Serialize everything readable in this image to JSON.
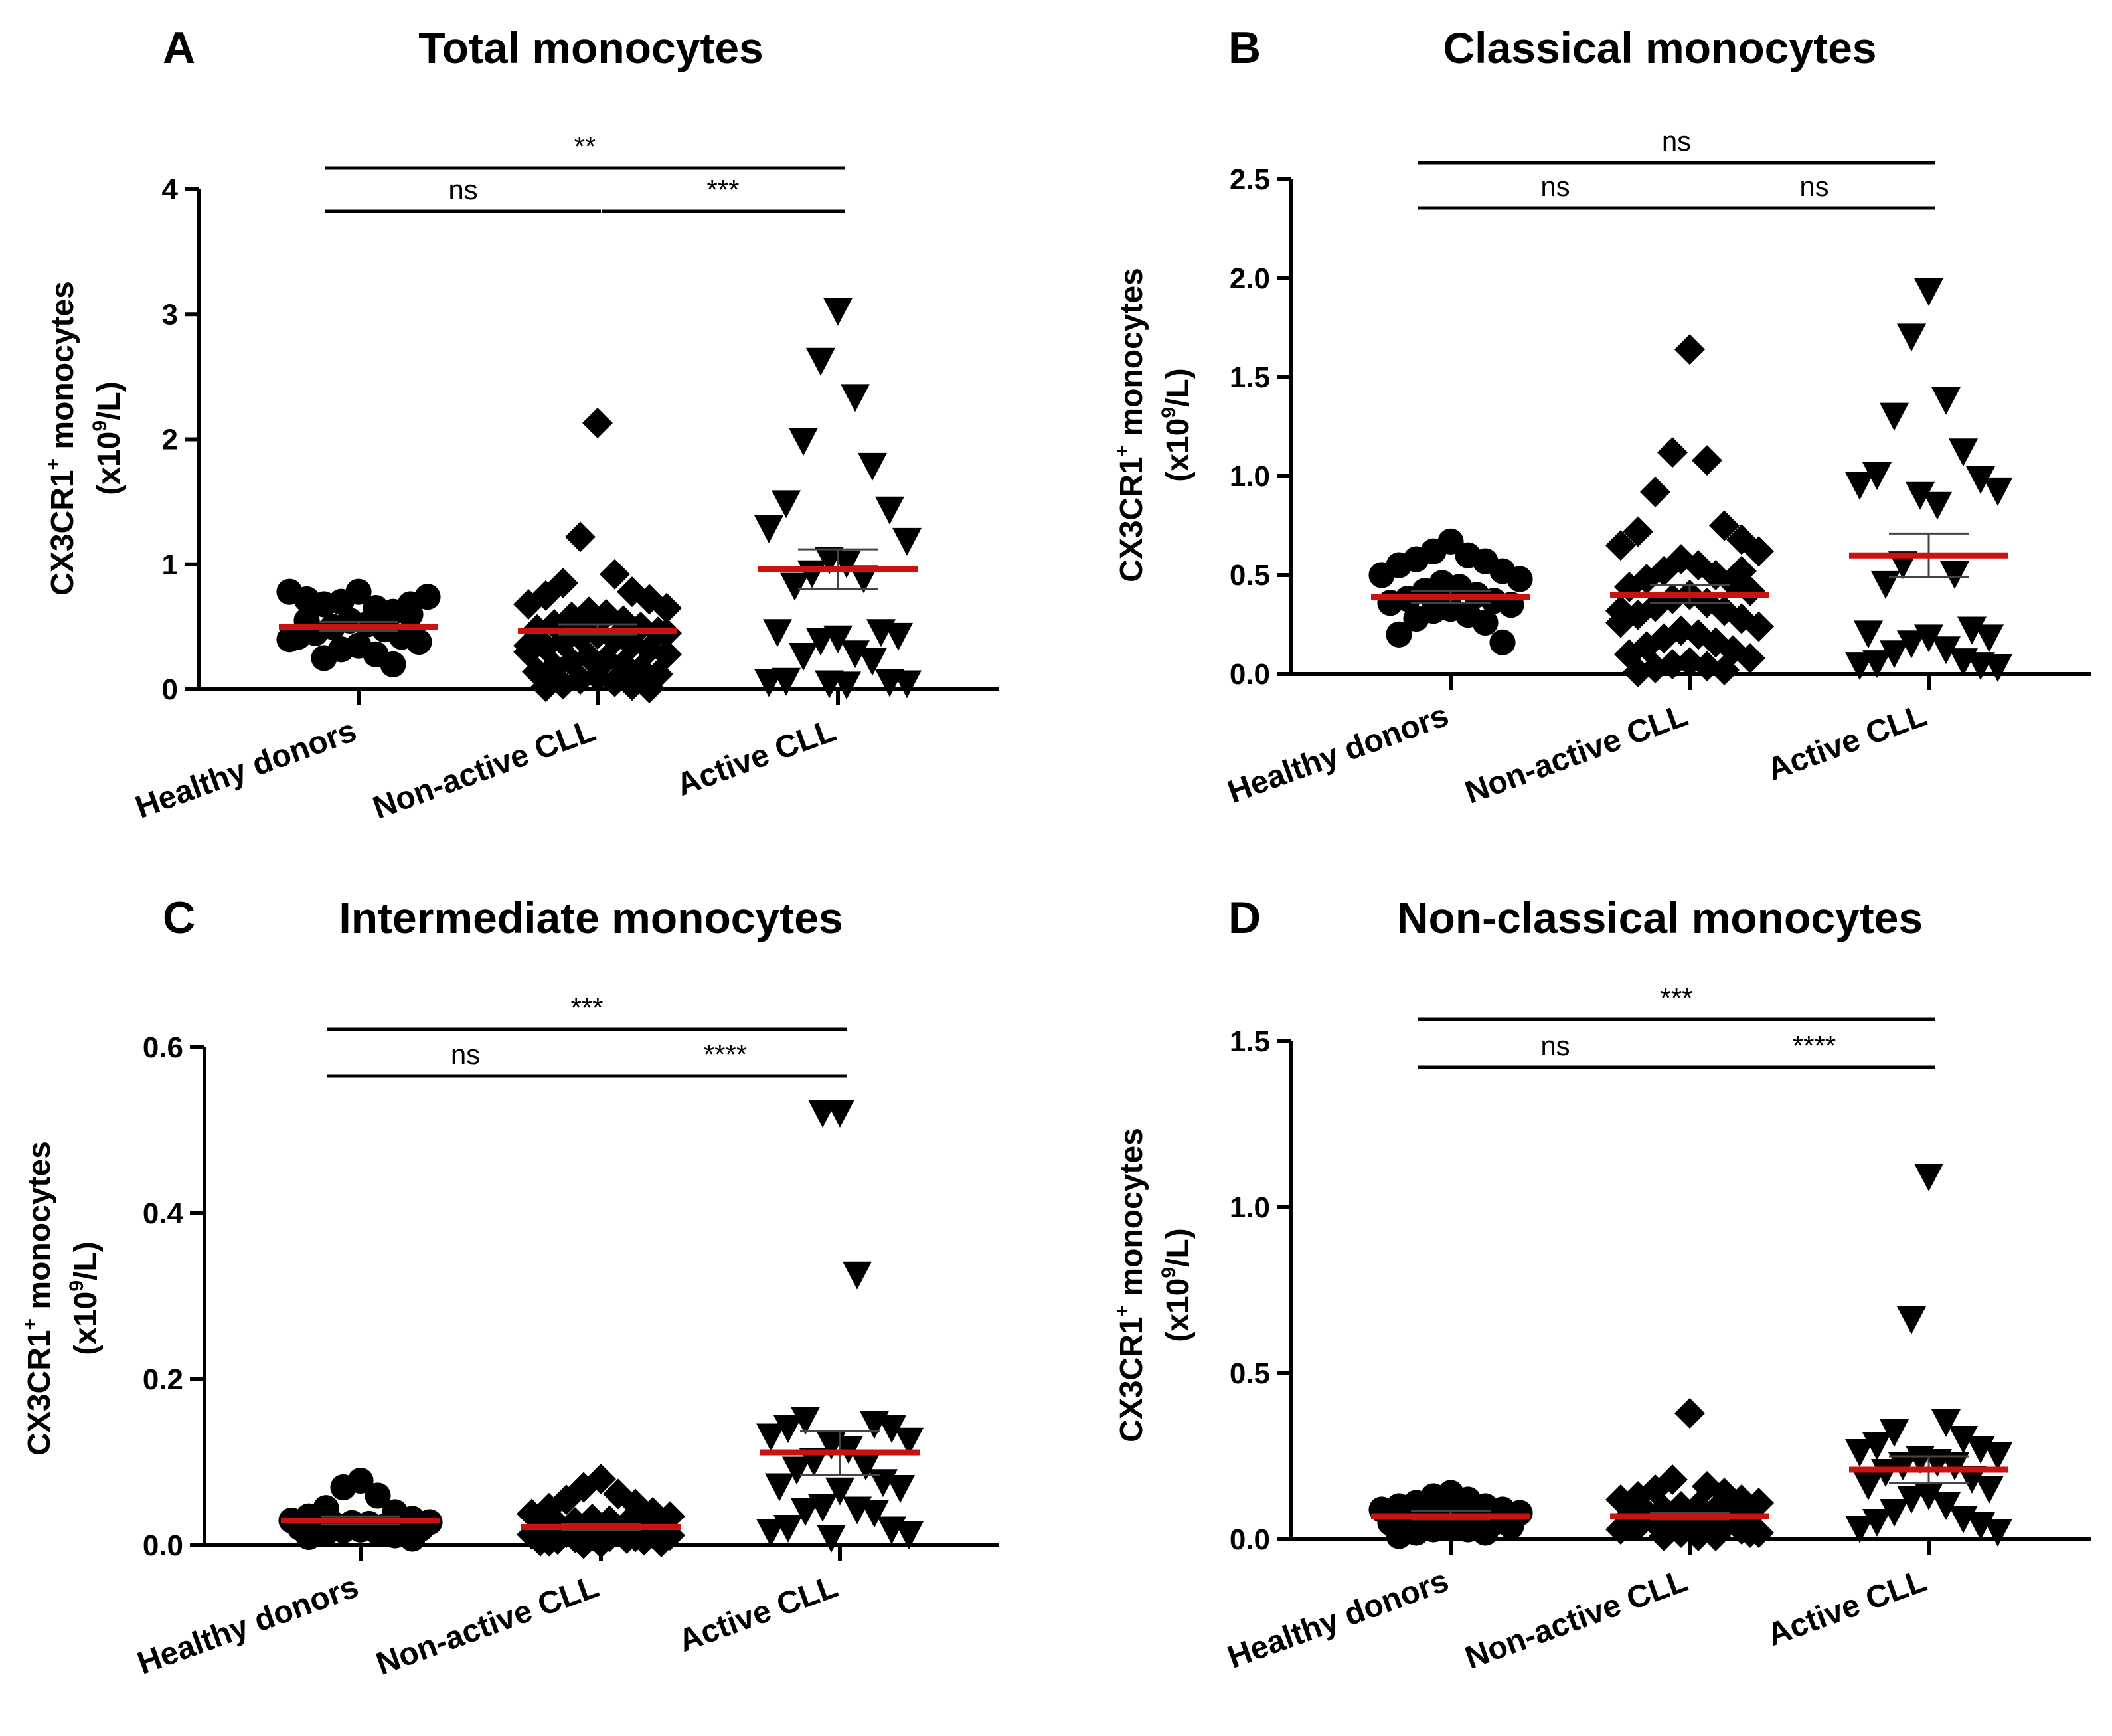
{
  "colors": {
    "points": "#000000",
    "median": "#cc1111",
    "axis": "#000000"
  },
  "chart_data": [
    {
      "letter": "A",
      "title": "Total monocytes",
      "type": "scatter",
      "categories": [
        "Healthy donors",
        "Non-active CLL",
        "Active CLL"
      ],
      "ylabel": {
        "line1": "CX3CR1",
        "sup1": "+",
        "line1b": " monocytes",
        "line2a": "(x10",
        "sup2": "9",
        "line2b": "/L)"
      },
      "ylim": [
        0,
        4
      ],
      "yticks": [
        "0",
        "1",
        "2",
        "3",
        "4"
      ],
      "yticks_values": [
        0,
        1,
        2,
        3,
        4
      ],
      "markers": [
        "circle",
        "diamond",
        "triangle-down"
      ],
      "medians": [
        0.5,
        0.47,
        0.96
      ],
      "errors": [
        [
          0.47,
          0.54
        ],
        [
          0.44,
          0.52
        ],
        [
          0.8,
          1.12
        ]
      ],
      "significance": [
        {
          "from": 0,
          "to": 2,
          "label": "**",
          "level": 2
        },
        {
          "from": 0,
          "to": 1,
          "label": "ns",
          "level": 1
        },
        {
          "from": 1,
          "to": 2,
          "label": "***",
          "level": 1
        }
      ],
      "series": [
        {
          "name": "Healthy donors",
          "values": [
            0.78,
            0.7,
            0.65,
            0.68,
            0.62,
            0.72,
            0.68,
            0.78,
            0.74,
            0.55,
            0.52,
            0.5,
            0.48,
            0.45,
            0.42,
            0.42,
            0.38,
            0.35,
            0.32,
            0.28,
            0.25,
            0.2,
            0.55,
            0.6,
            0.4
          ]
        },
        {
          "name": "Non-active CLL",
          "values": [
            2.13,
            1.22,
            0.92,
            0.85,
            0.78,
            0.75,
            0.72,
            0.68,
            0.65,
            0.62,
            0.6,
            0.58,
            0.55,
            0.52,
            0.5,
            0.48,
            0.46,
            0.44,
            0.42,
            0.4,
            0.38,
            0.36,
            0.34,
            0.32,
            0.3,
            0.28,
            0.26,
            0.24,
            0.22,
            0.2,
            0.18,
            0.16,
            0.14,
            0.12,
            0.1,
            0.08,
            0.06,
            0.04,
            0.03,
            0.02,
            0.01,
            0.35,
            0.45,
            0.55
          ]
        },
        {
          "name": "Active CLL",
          "values": [
            3.02,
            2.62,
            2.33,
            1.98,
            1.78,
            1.48,
            1.43,
            1.28,
            1.18,
            1.03,
            1.0,
            0.92,
            0.88,
            0.82,
            0.45,
            0.45,
            0.42,
            0.4,
            0.38,
            0.28,
            0.26,
            0.22,
            0.06,
            0.05,
            0.05,
            0.04,
            0.04,
            0.03
          ]
        }
      ]
    },
    {
      "letter": "B",
      "title": "Classical monocytes",
      "type": "scatter",
      "categories": [
        "Healthy donors",
        "Non-active CLL",
        "Active CLL"
      ],
      "ylabel": {
        "line1": "CX3CR1",
        "sup1": "+",
        "line1b": " monocytes",
        "line2a": "(x10",
        "sup2": "9",
        "line2b": "/L)"
      },
      "ylim": [
        0,
        2.5
      ],
      "yticks": [
        "0.0",
        "0.5",
        "1.0",
        "1.5",
        "2.0",
        "2.5"
      ],
      "yticks_values": [
        0,
        0.5,
        1.0,
        1.5,
        2.0,
        2.5
      ],
      "markers": [
        "circle",
        "diamond",
        "triangle-down"
      ],
      "medians": [
        0.39,
        0.4,
        0.6
      ],
      "errors": [
        [
          0.36,
          0.42
        ],
        [
          0.36,
          0.45
        ],
        [
          0.49,
          0.71
        ]
      ],
      "significance": [
        {
          "from": 0,
          "to": 2,
          "label": "ns",
          "level": 2
        },
        {
          "from": 0,
          "to": 1,
          "label": "ns",
          "level": 1
        },
        {
          "from": 1,
          "to": 2,
          "label": "ns",
          "level": 1
        }
      ],
      "series": [
        {
          "name": "Healthy donors",
          "values": [
            0.67,
            0.62,
            0.6,
            0.58,
            0.57,
            0.55,
            0.52,
            0.5,
            0.48,
            0.46,
            0.44,
            0.42,
            0.4,
            0.38,
            0.37,
            0.36,
            0.35,
            0.33,
            0.32,
            0.3,
            0.28,
            0.26,
            0.2,
            0.16
          ]
        },
        {
          "name": "Non-active CLL",
          "values": [
            1.64,
            1.12,
            1.08,
            0.92,
            0.75,
            0.72,
            0.68,
            0.65,
            0.62,
            0.58,
            0.55,
            0.52,
            0.5,
            0.48,
            0.46,
            0.44,
            0.42,
            0.4,
            0.38,
            0.36,
            0.34,
            0.32,
            0.3,
            0.28,
            0.26,
            0.24,
            0.22,
            0.2,
            0.18,
            0.16,
            0.14,
            0.12,
            0.1,
            0.08,
            0.06,
            0.05,
            0.04,
            0.03,
            0.02,
            0.01,
            0.52,
            0.32
          ]
        },
        {
          "name": "Active CLL",
          "values": [
            1.93,
            1.7,
            1.38,
            1.3,
            1.12,
            1.0,
            0.98,
            0.95,
            0.92,
            0.9,
            0.85,
            0.55,
            0.5,
            0.45,
            0.22,
            0.2,
            0.18,
            0.18,
            0.15,
            0.12,
            0.1,
            0.06,
            0.05,
            0.04,
            0.04,
            0.03
          ]
        }
      ]
    },
    {
      "letter": "C",
      "title": "Intermediate monocytes",
      "type": "scatter",
      "categories": [
        "Healthy donors",
        "Non-active CLL",
        "Active CLL"
      ],
      "ylabel": {
        "line1": "CX3CR1",
        "sup1": "+",
        "line1b": " monocytes",
        "line2a": "(x10",
        "sup2": "9",
        "line2b": "/L)"
      },
      "ylim": [
        0,
        0.6
      ],
      "yticks": [
        "0.0",
        "0.2",
        "0.4",
        "0.6"
      ],
      "yticks_values": [
        0,
        0.2,
        0.4,
        0.6
      ],
      "markers": [
        "circle",
        "diamond",
        "triangle-down"
      ],
      "medians": [
        0.03,
        0.022,
        0.112
      ],
      "errors": [
        [
          0.025,
          0.035
        ],
        [
          0.018,
          0.026
        ],
        [
          0.085,
          0.138
        ]
      ],
      "significance": [
        {
          "from": 0,
          "to": 2,
          "label": "***",
          "level": 2
        },
        {
          "from": 0,
          "to": 1,
          "label": "ns",
          "level": 1
        },
        {
          "from": 1,
          "to": 2,
          "label": "****",
          "level": 1
        }
      ],
      "series": [
        {
          "name": "Healthy donors",
          "values": [
            0.078,
            0.07,
            0.06,
            0.045,
            0.04,
            0.035,
            0.032,
            0.03,
            0.028,
            0.027,
            0.026,
            0.025,
            0.024,
            0.023,
            0.022,
            0.021,
            0.02,
            0.019,
            0.018,
            0.016,
            0.015,
            0.012,
            0.01,
            0.008
          ]
        },
        {
          "name": "Non-active CLL",
          "values": [
            0.08,
            0.07,
            0.062,
            0.055,
            0.05,
            0.045,
            0.04,
            0.038,
            0.035,
            0.032,
            0.03,
            0.028,
            0.026,
            0.025,
            0.024,
            0.022,
            0.021,
            0.02,
            0.019,
            0.018,
            0.017,
            0.016,
            0.015,
            0.014,
            0.013,
            0.012,
            0.011,
            0.01,
            0.009,
            0.008,
            0.007,
            0.006,
            0.005,
            0.004,
            0.003,
            0.002,
            0.02,
            0.015,
            0.01,
            0.005
          ]
        },
        {
          "name": "Active CLL",
          "values": [
            0.52,
            0.52,
            0.325,
            0.15,
            0.145,
            0.14,
            0.14,
            0.13,
            0.125,
            0.12,
            0.115,
            0.1,
            0.095,
            0.09,
            0.075,
            0.07,
            0.068,
            0.065,
            0.045,
            0.042,
            0.04,
            0.038,
            0.02,
            0.018,
            0.015,
            0.012,
            0.008
          ]
        }
      ]
    },
    {
      "letter": "D",
      "title": "Non-classical monocytes",
      "type": "scatter",
      "categories": [
        "Healthy donors",
        "Non-active CLL",
        "Active CLL"
      ],
      "ylabel": {
        "line1": "CX3CR1",
        "sup1": "+",
        "line1b": " monocytes",
        "line2a": "(x10",
        "sup2": "9",
        "line2b": "/L)"
      },
      "ylim": [
        0,
        1.5
      ],
      "yticks": [
        "0.0",
        "0.5",
        "1.0",
        "1.5"
      ],
      "yticks_values": [
        0,
        0.5,
        1.0,
        1.5
      ],
      "markers": [
        "circle",
        "diamond",
        "triangle-down"
      ],
      "medians": [
        0.07,
        0.07,
        0.21
      ],
      "errors": [
        [
          0.06,
          0.085
        ],
        [
          0.06,
          0.08
        ],
        [
          0.17,
          0.25
        ]
      ],
      "significance": [
        {
          "from": 0,
          "to": 2,
          "label": "***",
          "level": 2
        },
        {
          "from": 0,
          "to": 1,
          "label": "ns",
          "level": 1
        },
        {
          "from": 1,
          "to": 2,
          "label": "****",
          "level": 1
        }
      ],
      "series": [
        {
          "name": "Healthy donors",
          "values": [
            0.14,
            0.13,
            0.12,
            0.11,
            0.1,
            0.1,
            0.09,
            0.09,
            0.08,
            0.08,
            0.07,
            0.07,
            0.06,
            0.06,
            0.05,
            0.05,
            0.04,
            0.04,
            0.03,
            0.03,
            0.02,
            0.02,
            0.01
          ]
        },
        {
          "name": "Non-active CLL",
          "values": [
            0.38,
            0.18,
            0.16,
            0.15,
            0.14,
            0.13,
            0.12,
            0.12,
            0.11,
            0.1,
            0.1,
            0.09,
            0.09,
            0.08,
            0.08,
            0.07,
            0.07,
            0.06,
            0.06,
            0.05,
            0.05,
            0.04,
            0.04,
            0.03,
            0.03,
            0.02,
            0.02,
            0.01,
            0.01,
            0.01,
            0.08,
            0.06,
            0.04,
            0.02
          ]
        },
        {
          "name": "Active CLL",
          "values": [
            1.09,
            0.66,
            0.35,
            0.32,
            0.3,
            0.28,
            0.27,
            0.26,
            0.25,
            0.24,
            0.23,
            0.22,
            0.22,
            0.2,
            0.18,
            0.16,
            0.15,
            0.13,
            0.12,
            0.1,
            0.08,
            0.06,
            0.05,
            0.04,
            0.03,
            0.02
          ]
        }
      ]
    }
  ]
}
